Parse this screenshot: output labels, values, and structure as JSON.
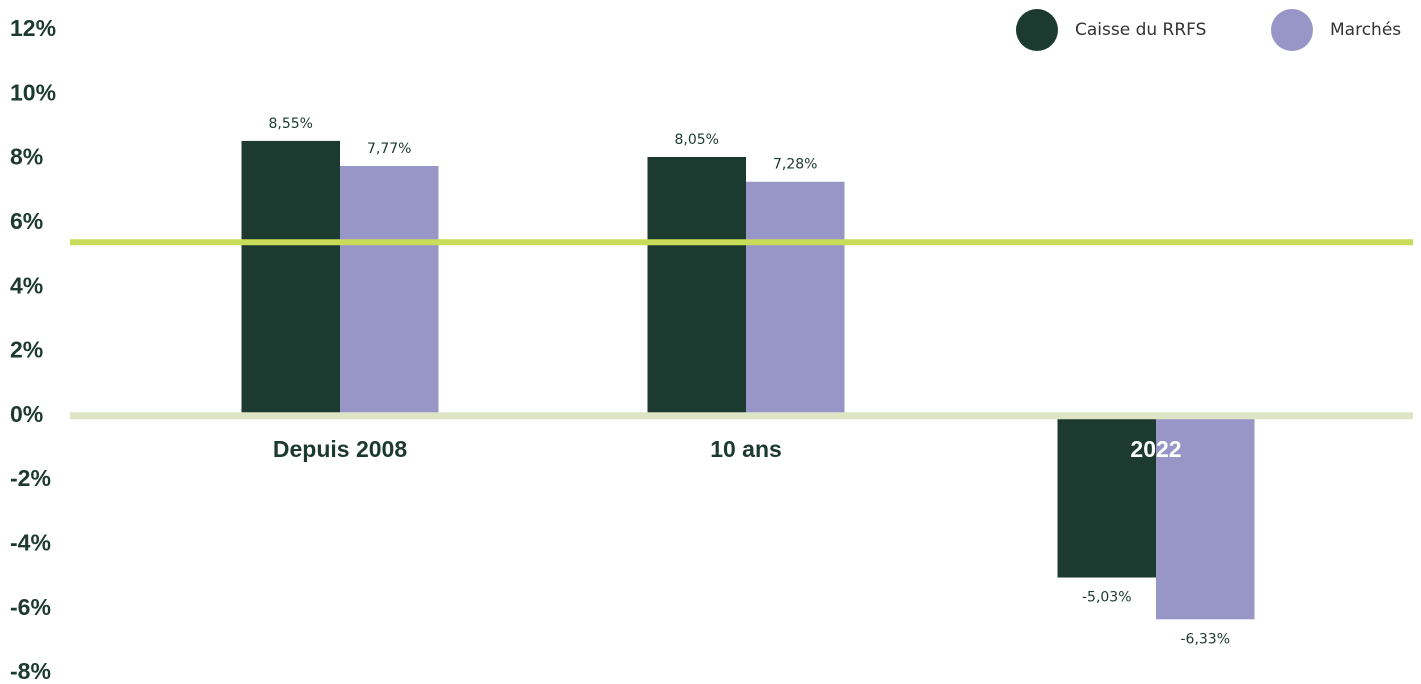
{
  "chart_data": {
    "type": "bar",
    "categories": [
      "Depuis 2008",
      "10 ans",
      "2022"
    ],
    "series": [
      {
        "name": "Caisse du RRFS",
        "values": [
          8.55,
          8.05,
          -5.03
        ],
        "labels": [
          "8,55%",
          "8,05%",
          "-5,03%"
        ],
        "color": "#1c3a2f"
      },
      {
        "name": "Marchés",
        "values": [
          7.77,
          7.28,
          -6.33
        ],
        "labels": [
          "7,77%",
          "7,28%",
          "-6,33%"
        ],
        "color": "#9896c7"
      }
    ],
    "yticks": [
      {
        "value": 12,
        "label": "12%"
      },
      {
        "value": 10,
        "label": "10%"
      },
      {
        "value": 8,
        "label": "8%"
      },
      {
        "value": 6,
        "label": "6%"
      },
      {
        "value": 4,
        "label": "4%"
      },
      {
        "value": 2,
        "label": "2%"
      },
      {
        "value": 0,
        "label": "0%"
      },
      {
        "value": -2,
        "label": "-2%"
      },
      {
        "value": -4,
        "label": "-4%"
      },
      {
        "value": -6,
        "label": "-6%"
      },
      {
        "value": -8,
        "label": "-8%"
      }
    ],
    "ylim": [
      -8,
      12
    ],
    "reference_line": {
      "value": 5.4,
      "color": "#c9dc5a"
    },
    "zero_line_color": "#dde5c6",
    "category_label_color": "#1c3a2f",
    "category_label_color_on_dark": "#ffffff",
    "grid": false,
    "legend_position": "top-right"
  }
}
